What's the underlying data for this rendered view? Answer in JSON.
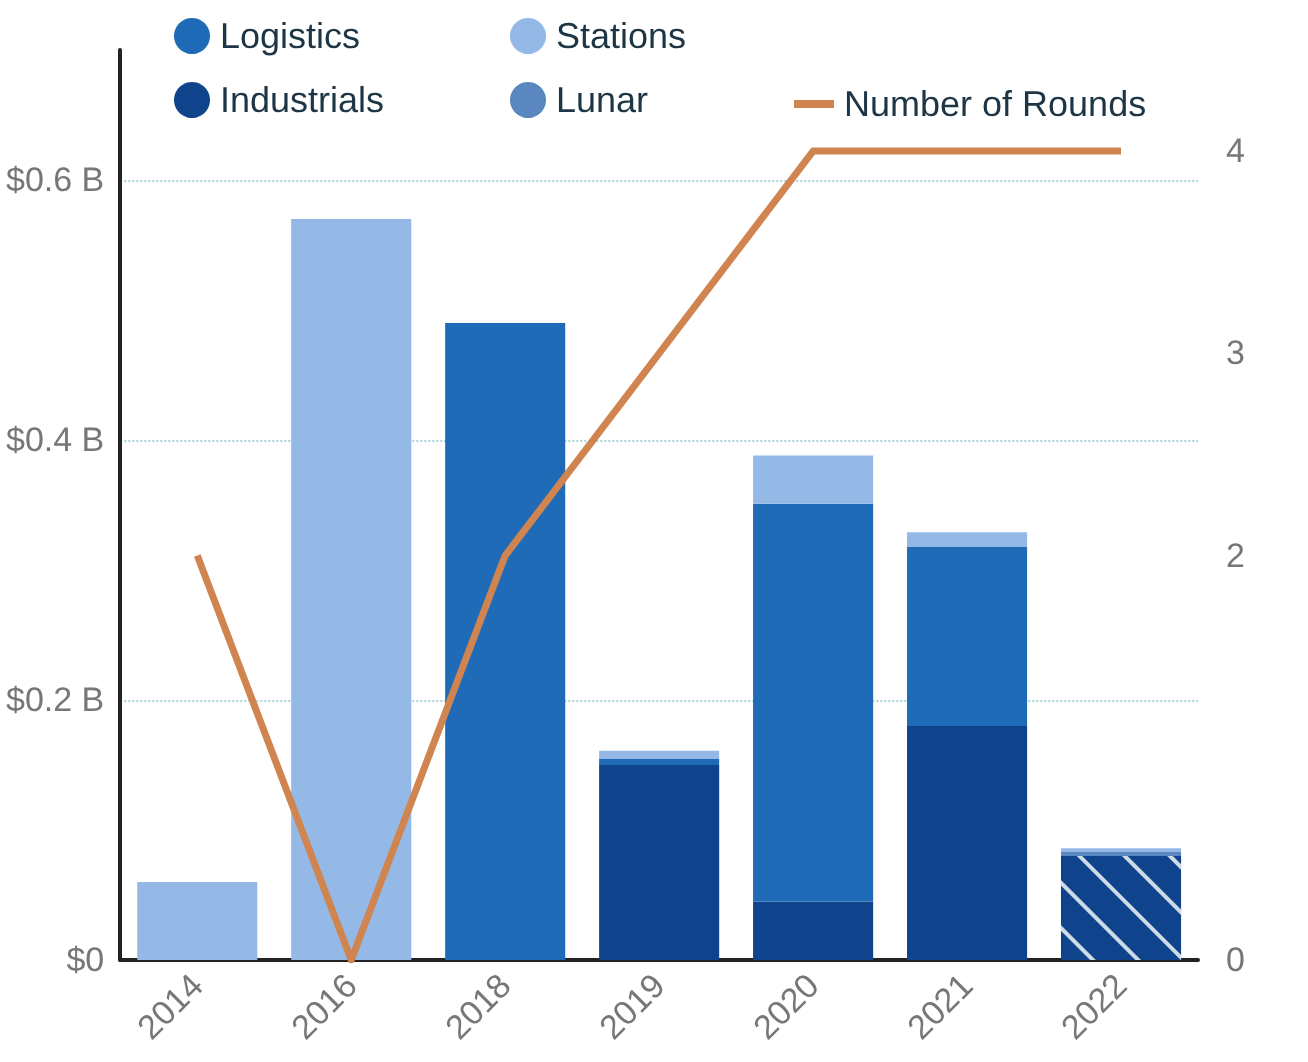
{
  "chart_data": {
    "type": "bar",
    "stacked": true,
    "categories": [
      "2014",
      "2016",
      "2018",
      "2019",
      "2020",
      "2021",
      "2022"
    ],
    "series": [
      {
        "name": "Industrials",
        "color": "#0f448c",
        "values": [
          0,
          0,
          0,
          0.15,
          0.045,
          0.18,
          0.08
        ]
      },
      {
        "name": "Logistics",
        "color": "#1f6bb8",
        "values": [
          0,
          0,
          0.49,
          0.005,
          0.306,
          0.138,
          0
        ]
      },
      {
        "name": "Lunar",
        "color": "#5b87c0",
        "values": [
          0,
          0,
          0,
          0,
          0,
          0,
          0.003
        ]
      },
      {
        "name": "Stations",
        "color": "#94b9e6",
        "values": [
          0.06,
          0.57,
          0,
          0.006,
          0.037,
          0.011,
          0.003
        ]
      },
      {
        "name": "Number of Rounds",
        "type": "line",
        "axis": "y2",
        "color": "#d0844f",
        "values": [
          2,
          0,
          2,
          3,
          4,
          4,
          4
        ]
      }
    ],
    "ylim": [
      0,
      0.7
    ],
    "yticks": [
      {
        "value": 0,
        "label": "$0"
      },
      {
        "value": 0.2,
        "label": "$0.2 B"
      },
      {
        "value": 0.4,
        "label": "$0.4 B"
      },
      {
        "value": 0.6,
        "label": "$0.6 B"
      }
    ],
    "y2lim": [
      0,
      4.5
    ],
    "y2ticks": [
      0,
      2,
      3,
      4
    ],
    "grid": "y",
    "legend": "top",
    "marker": "none"
  }
}
